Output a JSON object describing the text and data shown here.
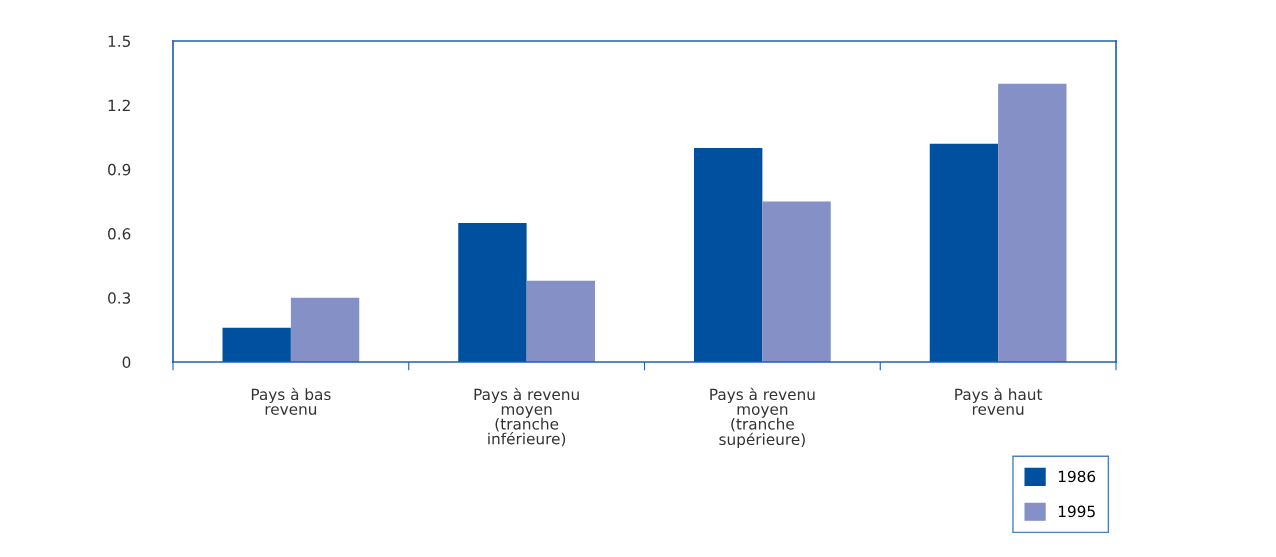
{
  "chart_data": {
    "type": "bar",
    "categories": [
      "Pays à bas\nrevenu",
      "Pays à revenu\nmoyen\n(tranche\ninférieure)",
      "Pays à revenu\nmoyen\n(tranche\nsupérieure)",
      "Pays à haut\nrevenu"
    ],
    "series": [
      {
        "name": "1986",
        "color": "#0050a0",
        "values": [
          0.16,
          0.65,
          1.0,
          1.02
        ]
      },
      {
        "name": "1995",
        "color": "#8490c6",
        "values": [
          0.3,
          0.38,
          0.75,
          1.3
        ]
      }
    ],
    "ylim": [
      0,
      1.5
    ],
    "yticks": [
      {
        "value": 0,
        "label": "0"
      },
      0.3,
      0.6,
      0.9,
      1.2,
      1.5
    ],
    "grid": false,
    "legend": "bottom right"
  }
}
